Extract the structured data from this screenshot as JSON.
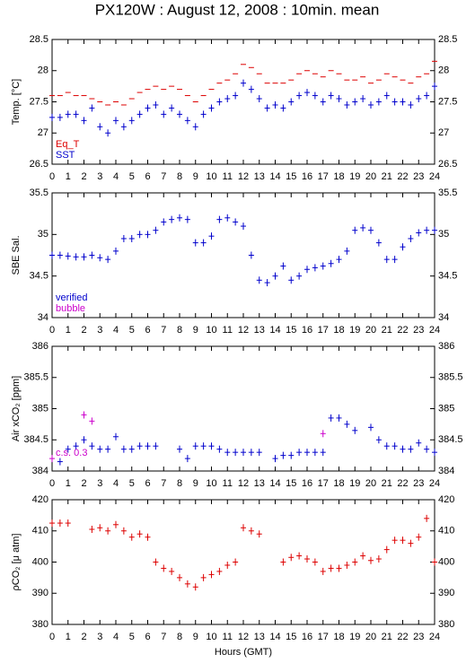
{
  "title": "PX120W : August 12, 2008 : 10min. mean",
  "chart_data": [
    {
      "type": "scatter",
      "ylabel": "Temp. [°C]",
      "legend": "lower left",
      "x": [
        0,
        0.5,
        1,
        1.5,
        2,
        2.5,
        3,
        3.5,
        4,
        4.5,
        5,
        5.5,
        6,
        6.5,
        7,
        7.5,
        8,
        8.5,
        9,
        9.5,
        10,
        10.5,
        11,
        11.5,
        12,
        12.5,
        13,
        13.5,
        14,
        14.5,
        15,
        15.5,
        16,
        16.5,
        17,
        17.5,
        18,
        18.5,
        19,
        19.5,
        20,
        20.5,
        21,
        21.5,
        22,
        22.5,
        23,
        23.5,
        24
      ],
      "series": [
        {
          "name": "Eq_T",
          "color": "#dd0000",
          "marker": "dash",
          "values": [
            27.6,
            27.6,
            27.65,
            27.6,
            27.6,
            27.55,
            27.5,
            27.45,
            27.5,
            27.45,
            27.55,
            27.65,
            27.7,
            27.75,
            27.7,
            27.75,
            27.7,
            27.6,
            27.5,
            27.6,
            27.7,
            27.8,
            27.85,
            27.95,
            28.1,
            28.05,
            27.95,
            27.8,
            27.8,
            27.8,
            27.85,
            27.95,
            28.0,
            27.95,
            27.9,
            28.0,
            27.95,
            27.85,
            27.85,
            27.9,
            27.8,
            27.85,
            27.95,
            27.9,
            27.85,
            27.8,
            27.9,
            27.95,
            28.15
          ]
        },
        {
          "name": "SST",
          "color": "#0000cc",
          "marker": "cross",
          "values": [
            27.25,
            27.25,
            27.3,
            27.3,
            27.2,
            27.4,
            27.1,
            27.0,
            27.2,
            27.1,
            27.2,
            27.3,
            27.4,
            27.45,
            27.3,
            27.4,
            27.3,
            27.2,
            27.1,
            27.3,
            27.4,
            27.5,
            27.55,
            27.6,
            27.8,
            27.7,
            27.55,
            27.4,
            27.45,
            27.4,
            27.5,
            27.6,
            27.65,
            27.6,
            27.5,
            27.6,
            27.55,
            27.45,
            27.5,
            27.55,
            27.45,
            27.5,
            27.6,
            27.5,
            27.5,
            27.45,
            27.55,
            27.6,
            27.75
          ]
        }
      ],
      "xlim": [
        0,
        24
      ],
      "xticks": [
        0,
        1,
        2,
        3,
        4,
        5,
        6,
        7,
        8,
        9,
        10,
        11,
        12,
        13,
        14,
        15,
        16,
        17,
        18,
        19,
        20,
        21,
        22,
        23,
        24
      ],
      "ylim": [
        26.5,
        28.5
      ],
      "yticks": [
        26.5,
        27,
        27.5,
        28,
        28.5
      ]
    },
    {
      "type": "scatter",
      "ylabel": "SBE Sal.",
      "legend": "lower left",
      "x": [
        0,
        0.5,
        1,
        1.5,
        2,
        2.5,
        3,
        3.5,
        4,
        4.5,
        5,
        5.5,
        6,
        6.5,
        7,
        7.5,
        8,
        8.5,
        9,
        9.5,
        10,
        10.5,
        11,
        11.5,
        12,
        12.5,
        13,
        13.5,
        14,
        14.5,
        15,
        15.5,
        16,
        16.5,
        17,
        17.5,
        18,
        18.5,
        19,
        19.5,
        20,
        20.5,
        21,
        21.5,
        22,
        22.5,
        23,
        23.5,
        24
      ],
      "series": [
        {
          "name": "verified",
          "color": "#0000cc",
          "marker": "cross",
          "values": [
            34.75,
            34.75,
            34.74,
            34.73,
            34.73,
            34.75,
            34.72,
            34.7,
            34.8,
            34.95,
            34.95,
            35.0,
            35.0,
            35.05,
            35.15,
            35.18,
            35.2,
            35.18,
            34.9,
            34.9,
            34.98,
            35.18,
            35.2,
            35.15,
            35.1,
            34.75,
            34.45,
            34.42,
            34.5,
            34.62,
            34.45,
            34.5,
            34.58,
            34.6,
            34.62,
            34.65,
            34.7,
            34.8,
            35.05,
            35.08,
            35.05,
            34.9,
            34.7,
            34.7,
            34.85,
            34.95,
            35.02,
            35.05,
            35.05
          ]
        },
        {
          "name": "bubble",
          "color": "#cc00cc",
          "marker": "cross",
          "values": [
            null,
            null,
            null,
            null,
            null,
            null,
            null,
            null,
            null,
            null,
            null,
            null,
            null,
            null,
            null,
            null,
            null,
            null,
            null,
            null,
            null,
            null,
            null,
            null,
            null,
            null,
            null,
            null,
            null,
            null,
            null,
            null,
            null,
            null,
            null,
            null,
            null,
            null,
            null,
            null,
            null,
            null,
            null,
            null,
            null,
            null,
            null,
            null,
            null
          ]
        }
      ],
      "xlim": [
        0,
        24
      ],
      "xticks": [
        0,
        1,
        2,
        3,
        4,
        5,
        6,
        7,
        8,
        9,
        10,
        11,
        12,
        13,
        14,
        15,
        16,
        17,
        18,
        19,
        20,
        21,
        22,
        23,
        24
      ],
      "ylim": [
        34,
        35.5
      ],
      "yticks": [
        34,
        34.5,
        35,
        35.5
      ]
    },
    {
      "type": "scatter",
      "ylabel": "Air xCO₂ [ppm]",
      "annotation": "c.s. 0.3",
      "x": [
        0,
        0.5,
        1,
        1.5,
        2,
        2.5,
        3,
        3.5,
        4,
        4.5,
        5,
        5.5,
        6,
        6.5,
        7,
        7.5,
        8,
        8.5,
        9,
        9.5,
        10,
        10.5,
        11,
        11.5,
        12,
        12.5,
        13,
        13.5,
        14,
        14.5,
        15,
        15.5,
        16,
        16.5,
        17,
        17.5,
        18,
        18.5,
        19,
        19.5,
        20,
        20.5,
        21,
        21.5,
        22,
        22.5,
        23,
        23.5,
        24
      ],
      "series": [
        {
          "color": "#0000cc",
          "marker": "cross",
          "values": [
            null,
            384.15,
            384.35,
            384.4,
            384.5,
            384.4,
            384.35,
            384.35,
            384.55,
            384.35,
            384.35,
            384.4,
            384.4,
            384.4,
            null,
            null,
            384.35,
            384.2,
            384.4,
            384.4,
            384.4,
            384.35,
            384.3,
            384.3,
            384.3,
            384.3,
            384.3,
            null,
            384.2,
            384.25,
            384.25,
            384.3,
            384.3,
            384.3,
            384.3,
            384.85,
            384.85,
            384.75,
            384.65,
            null,
            384.7,
            384.5,
            384.4,
            384.4,
            384.35,
            384.35,
            384.45,
            384.35,
            384.3
          ]
        },
        {
          "color": "#cc00cc",
          "marker": "cross",
          "values": [
            384.2,
            null,
            null,
            null,
            384.9,
            384.8,
            null,
            null,
            null,
            null,
            null,
            null,
            null,
            null,
            null,
            null,
            null,
            null,
            null,
            null,
            null,
            null,
            null,
            null,
            null,
            null,
            null,
            null,
            null,
            null,
            null,
            null,
            null,
            null,
            384.6,
            null,
            null,
            null,
            null,
            null,
            null,
            null,
            null,
            null,
            null,
            null,
            null,
            null,
            null
          ]
        }
      ],
      "xlim": [
        0,
        24
      ],
      "xticks": [
        0,
        1,
        2,
        3,
        4,
        5,
        6,
        7,
        8,
        9,
        10,
        11,
        12,
        13,
        14,
        15,
        16,
        17,
        18,
        19,
        20,
        21,
        22,
        23,
        24
      ],
      "ylim": [
        384,
        386
      ],
      "yticks": [
        384,
        384.5,
        385,
        385.5,
        386
      ]
    },
    {
      "type": "scatter",
      "ylabel": "ρCO₂ [μ atm]",
      "xlabel": "Hours (GMT)",
      "x": [
        0,
        0.5,
        1,
        1.5,
        2,
        2.5,
        3,
        3.5,
        4,
        4.5,
        5,
        5.5,
        6,
        6.5,
        7,
        7.5,
        8,
        8.5,
        9,
        9.5,
        10,
        10.5,
        11,
        11.5,
        12,
        12.5,
        13,
        13.5,
        14,
        14.5,
        15,
        15.5,
        16,
        16.5,
        17,
        17.5,
        18,
        18.5,
        19,
        19.5,
        20,
        20.5,
        21,
        21.5,
        22,
        22.5,
        23,
        23.5,
        24
      ],
      "series": [
        {
          "color": "#dd0000",
          "marker": "cross",
          "values": [
            412.5,
            412.5,
            412.5,
            null,
            null,
            410.5,
            411,
            410,
            412,
            410,
            408,
            409,
            408,
            400,
            398,
            397,
            395,
            393,
            392,
            395,
            396,
            397,
            399,
            400,
            411,
            410,
            409,
            null,
            null,
            400,
            401.5,
            402,
            401,
            400,
            397,
            398,
            398,
            399,
            400,
            402,
            400.5,
            401,
            404,
            407,
            407,
            406,
            408,
            414,
            400
          ]
        }
      ],
      "xlim": [
        0,
        24
      ],
      "xticks": [
        0,
        1,
        2,
        3,
        4,
        5,
        6,
        7,
        8,
        9,
        10,
        11,
        12,
        13,
        14,
        15,
        16,
        17,
        18,
        19,
        20,
        21,
        22,
        23,
        24
      ],
      "ylim": [
        380,
        420
      ],
      "yticks": [
        380,
        390,
        400,
        410,
        420
      ]
    }
  ]
}
